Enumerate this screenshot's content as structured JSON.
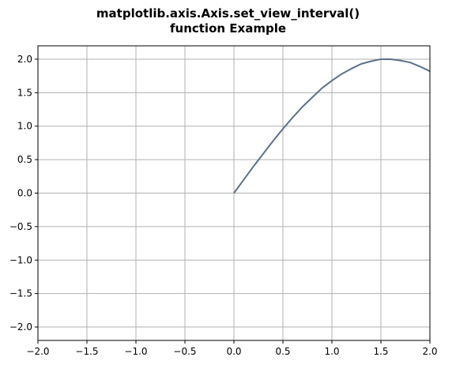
{
  "chart_data": {
    "type": "line",
    "title_line1": "matplotlib.axis.Axis.set_view_interval()",
    "title_line2": "function Example",
    "xlabel": "",
    "ylabel": "",
    "xlim": [
      -2.0,
      2.0
    ],
    "ylim": [
      -2.2,
      2.2
    ],
    "grid": true,
    "x_ticks": [
      -2.0,
      -1.5,
      -1.0,
      -0.5,
      0.0,
      0.5,
      1.0,
      1.5,
      2.0
    ],
    "x_tick_labels": [
      "−2.0",
      "−1.5",
      "−1.0",
      "−0.5",
      "0.0",
      "0.5",
      "1.0",
      "1.5",
      "2.0"
    ],
    "y_ticks": [
      2.0,
      1.5,
      1.0,
      0.5,
      0.0,
      -0.5,
      -1.0,
      -1.5,
      -2.0
    ],
    "y_tick_labels": [
      "2.0",
      "1.5",
      "1.0",
      "0.5",
      "0.0",
      "−0.5",
      "−1.0",
      "−1.5",
      "−2.0"
    ],
    "series": [
      {
        "color": "#5b7186",
        "x": [
          0.0,
          0.1,
          0.2,
          0.3,
          0.4,
          0.5,
          0.6,
          0.7,
          0.8,
          0.9,
          1.0,
          1.1,
          1.2,
          1.3,
          1.4,
          1.5,
          1.6,
          1.7,
          1.8,
          1.9,
          2.0
        ],
        "y": [
          0.0,
          0.2,
          0.4,
          0.59,
          0.78,
          0.96,
          1.13,
          1.29,
          1.43,
          1.57,
          1.68,
          1.78,
          1.86,
          1.93,
          1.97,
          2.0,
          2.0,
          1.98,
          1.95,
          1.89,
          1.82
        ]
      }
    ]
  }
}
